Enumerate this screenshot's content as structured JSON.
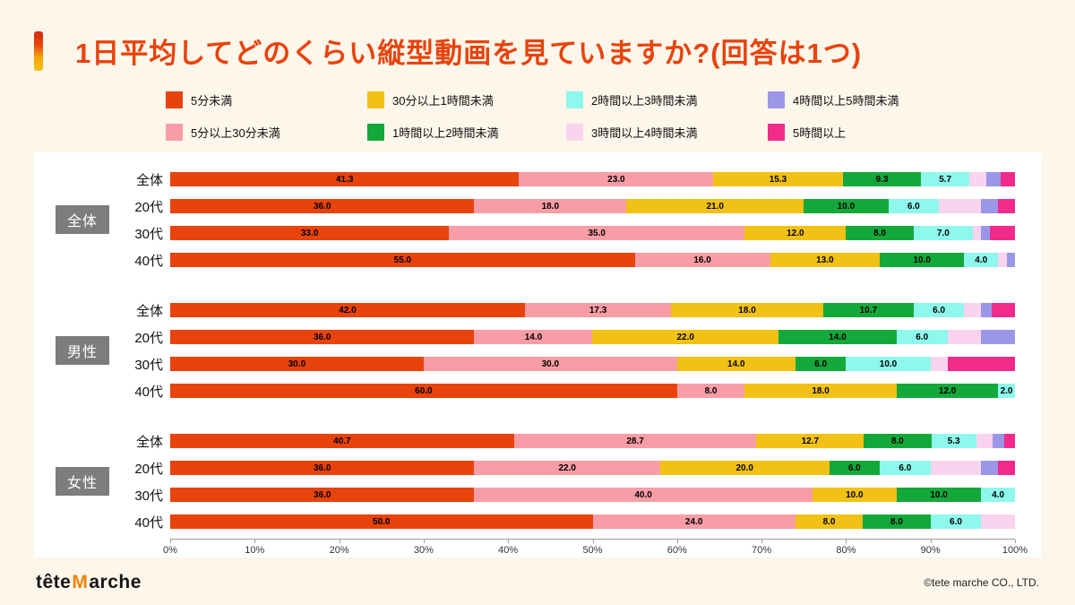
{
  "header": {
    "title": "1日平均してどのくらい縦型動画を見ていますか?(回答は1つ)"
  },
  "chart_data": {
    "type": "bar",
    "stacked": true,
    "orientation": "horizontal",
    "unit": "%",
    "title": "1日平均してどのくらい縦型動画を見ていますか?(回答は1つ)",
    "series": [
      {
        "name": "5分未満",
        "color": "#E8430C"
      },
      {
        "name": "5分以上30分未満",
        "color": "#F89DA6"
      },
      {
        "name": "30分以上1時間未満",
        "color": "#F2C116"
      },
      {
        "name": "1時間以上2時間未満",
        "color": "#14A83B"
      },
      {
        "name": "2時間以上3時間未満",
        "color": "#8EF8EC"
      },
      {
        "name": "3時間以上4時間未満",
        "color": "#FAD4EE"
      },
      {
        "name": "4時間以上5時間未満",
        "color": "#9B97E8"
      },
      {
        "name": "5時間以上",
        "color": "#F22B8B"
      }
    ],
    "legend_order": [
      0,
      2,
      4,
      6,
      1,
      3,
      5,
      7
    ],
    "labeled_segments": 5,
    "groups": [
      {
        "name": "全体",
        "rows": [
          {
            "label": "全体",
            "values": [
              41.3,
              23.0,
              15.3,
              9.3,
              5.7,
              2.0,
              1.7,
              1.7
            ]
          },
          {
            "label": "20代",
            "values": [
              36.0,
              18.0,
              21.0,
              10.0,
              6.0,
              5.0,
              2.0,
              2.0
            ]
          },
          {
            "label": "30代",
            "values": [
              33.0,
              35.0,
              12.0,
              8.0,
              7.0,
              1.0,
              1.0,
              3.0
            ]
          },
          {
            "label": "40代",
            "values": [
              55.0,
              16.0,
              13.0,
              10.0,
              4.0,
              1.0,
              1.0,
              0.0
            ]
          }
        ]
      },
      {
        "name": "男性",
        "rows": [
          {
            "label": "全体",
            "values": [
              42.0,
              17.3,
              18.0,
              10.7,
              6.0,
              2.0,
              1.3,
              2.7
            ]
          },
          {
            "label": "20代",
            "values": [
              36.0,
              14.0,
              22.0,
              14.0,
              6.0,
              4.0,
              4.0,
              0.0
            ]
          },
          {
            "label": "30代",
            "values": [
              30.0,
              30.0,
              14.0,
              6.0,
              10.0,
              2.0,
              0.0,
              8.0
            ]
          },
          {
            "label": "40代",
            "values": [
              60.0,
              8.0,
              18.0,
              12.0,
              2.0,
              0.0,
              0.0,
              0.0
            ]
          }
        ]
      },
      {
        "name": "女性",
        "rows": [
          {
            "label": "全体",
            "values": [
              40.7,
              28.7,
              12.7,
              8.0,
              5.3,
              2.0,
              1.3,
              1.3
            ]
          },
          {
            "label": "20代",
            "values": [
              36.0,
              22.0,
              20.0,
              6.0,
              6.0,
              6.0,
              2.0,
              2.0
            ]
          },
          {
            "label": "30代",
            "values": [
              36.0,
              40.0,
              10.0,
              10.0,
              4.0,
              0.0,
              0.0,
              0.0
            ]
          },
          {
            "label": "40代",
            "values": [
              50.0,
              24.0,
              8.0,
              8.0,
              6.0,
              4.0,
              0.0,
              0.0
            ]
          }
        ]
      }
    ],
    "x_axis": {
      "min": 0,
      "max": 100,
      "ticks": [
        "0%",
        "10%",
        "20%",
        "30%",
        "40%",
        "50%",
        "60%",
        "70%",
        "80%",
        "90%",
        "100%"
      ]
    }
  },
  "footer": {
    "logo_prefix": "tête",
    "logo_m": "M",
    "logo_suffix": "arche",
    "copyright": "©tete marche CO., LTD."
  }
}
